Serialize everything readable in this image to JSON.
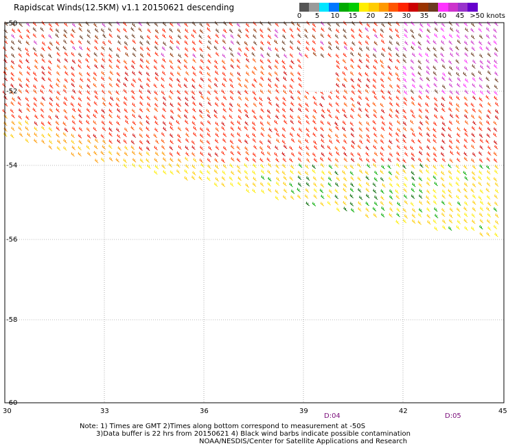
{
  "title": "Rapidscat Winds(12.5KM) v1.1 20150621 descending",
  "legend": {
    "colors": [
      "#555555",
      "#9a9a9a",
      "#00e5ff",
      "#0077ff",
      "#00aa00",
      "#00cc00",
      "#ffee00",
      "#ffcc00",
      "#ff9900",
      "#ff5500",
      "#ff2200",
      "#cc0000",
      "#993300",
      "#6b3a1f",
      "#ff33ff",
      "#cc33cc",
      "#9933cc",
      "#6600cc"
    ],
    "tick_labels": [
      "0",
      "5",
      "10",
      "15",
      "20",
      "25",
      "30",
      "35",
      "40",
      "45",
      ">50 knots"
    ],
    "unit": "knots"
  },
  "map": {
    "lon_ticks": [
      "30",
      "33",
      "36",
      "39",
      "42",
      "45"
    ],
    "lat_ticks": [
      "-50",
      "-52",
      "-54",
      "-56",
      "-58",
      "-60"
    ],
    "time_labels": [
      "D:04",
      "D:05"
    ],
    "grid": true
  },
  "notes": {
    "line1": "Note: 1) Times are GMT 2)Times along bottom correspond to measurement at -50S",
    "line2": "3)Data buffer is 22 hrs from 20150621 4) Black wind barbs indicate possible contamination",
    "line3": "NOAA/NESDIS/Center for Satellite Applications and Research"
  }
}
